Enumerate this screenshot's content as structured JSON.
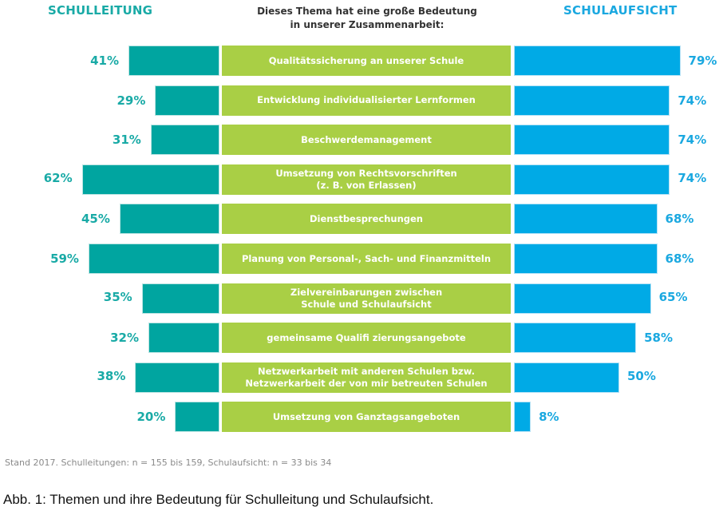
{
  "chart_data": {
    "type": "bar",
    "orientation": "horizontal-diverging",
    "title": "Dieses Thema hat eine große Bedeutung\nin unserer Zusammenarbeit:",
    "xlim": [
      0,
      100
    ],
    "unit": "%",
    "categories": [
      "Qualitätssicherung an unserer Schule",
      "Entwicklung individualisierter Lernformen",
      "Beschwerdemanagement",
      "Umsetzung von Rechtsvorschriften\n(z. B. von Erlassen)",
      "Dienstbesprechungen",
      "Planung von Personal-, Sach- und Finanzmitteln",
      "Zielvereinbarungen zwischen\nSchule und Schulaufsicht",
      "gemeinsame Qualifi zierungsangebote",
      "Netzwerkarbeit mit anderen Schulen bzw.\nNetzwerkarbeit der von mir betreuten Schulen",
      "Umsetzung von Ganztagsangeboten"
    ],
    "series": [
      {
        "name": "SCHULLEITUNG",
        "side": "left",
        "color": "#00a5a0",
        "values": [
          41,
          29,
          31,
          62,
          45,
          59,
          35,
          32,
          38,
          20
        ],
        "labels": [
          "41%",
          "29%",
          "31%",
          "62%",
          "45%",
          "59%",
          "35%",
          "32%",
          "38%",
          "20%"
        ]
      },
      {
        "name": "SCHULAUFSICHT",
        "side": "right",
        "color": "#00aae6",
        "values": [
          79,
          74,
          74,
          74,
          68,
          68,
          65,
          58,
          50,
          8
        ],
        "labels": [
          "79%",
          "74%",
          "74%",
          "74%",
          "68%",
          "68%",
          "65%",
          "58%",
          "50%",
          "8%"
        ]
      }
    ],
    "category_color": "#a9cf45",
    "footnote": "Stand 2017. Schulleitungen: n = 155 bis 159, Schulaufsicht: n = 33 bis 34"
  },
  "caption": "Abb. 1: Themen und ihre Bedeutung für Schulleitung und Schulaufsicht."
}
